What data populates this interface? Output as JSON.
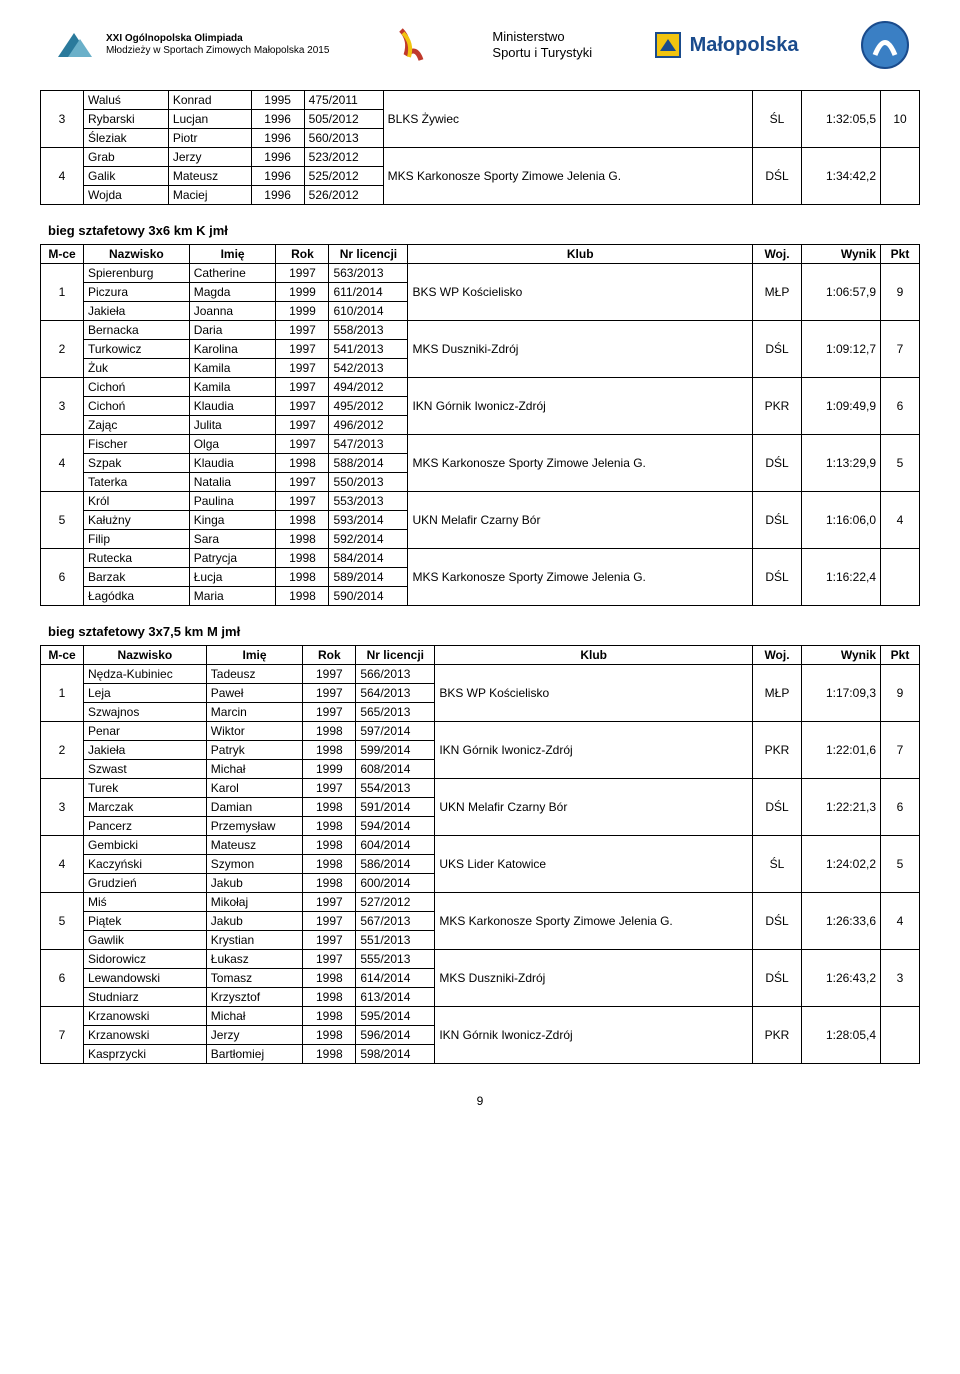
{
  "header": {
    "olympiad_line1": "XXI Ogólnopolska Olimpiada",
    "olympiad_line2": "Młodzieży w Sportach Zimowych Małopolska 2015",
    "ministry_line1": "Ministerstwo",
    "ministry_line2": "Sportu i Turystyki",
    "malopolska": "Małopolska"
  },
  "table1": {
    "rows": [
      {
        "mce": "",
        "naz": "Waluś",
        "imie": "Konrad",
        "rok": "1995",
        "lic": "475/2011",
        "klub": "",
        "woj": "",
        "wynik": "",
        "pkt": ""
      },
      {
        "mce": "3",
        "naz": "Rybarski",
        "imie": "Lucjan",
        "rok": "1996",
        "lic": "505/2012",
        "klub": "BLKS Żywiec",
        "woj": "ŚL",
        "wynik": "1:32:05,5",
        "pkt": "10"
      },
      {
        "mce": "",
        "naz": "Śleziak",
        "imie": "Piotr",
        "rok": "1996",
        "lic": "560/2013",
        "klub": "",
        "woj": "",
        "wynik": "",
        "pkt": ""
      },
      {
        "mce": "",
        "naz": "Grab",
        "imie": "Jerzy",
        "rok": "1996",
        "lic": "523/2012",
        "klub": "",
        "woj": "",
        "wynik": "",
        "pkt": ""
      },
      {
        "mce": "4",
        "naz": "Galik",
        "imie": "Mateusz",
        "rok": "1996",
        "lic": "525/2012",
        "klub": "MKS Karkonosze Sporty Zimowe Jelenia G.",
        "woj": "DŚL",
        "wynik": "1:34:42,2",
        "pkt": ""
      },
      {
        "mce": "",
        "naz": "Wojda",
        "imie": "Maciej",
        "rok": "1996",
        "lic": "526/2012",
        "klub": "",
        "woj": "",
        "wynik": "",
        "pkt": ""
      }
    ]
  },
  "section2_title": "bieg sztafetowy 3x6 km K jmł",
  "headers": {
    "mce": "M-ce",
    "naz": "Nazwisko",
    "imie": "Imię",
    "rok": "Rok",
    "lic": "Nr licencji",
    "klub": "Klub",
    "woj": "Woj.",
    "wynik": "Wynik",
    "pkt": "Pkt"
  },
  "table2": {
    "groups": [
      {
        "mce": "1",
        "klub": "BKS WP Kościelisko",
        "woj": "MŁP",
        "wynik": "1:06:57,9",
        "pkt": "9",
        "rows": [
          {
            "naz": "Spierenburg",
            "imie": "Catherine",
            "rok": "1997",
            "lic": "563/2013"
          },
          {
            "naz": "Piczura",
            "imie": "Magda",
            "rok": "1999",
            "lic": "611/2014"
          },
          {
            "naz": "Jakieła",
            "imie": "Joanna",
            "rok": "1999",
            "lic": "610/2014"
          }
        ]
      },
      {
        "mce": "2",
        "klub": "MKS Duszniki-Zdrój",
        "woj": "DŚL",
        "wynik": "1:09:12,7",
        "pkt": "7",
        "rows": [
          {
            "naz": "Bernacka",
            "imie": "Daria",
            "rok": "1997",
            "lic": "558/2013"
          },
          {
            "naz": "Turkowicz",
            "imie": "Karolina",
            "rok": "1997",
            "lic": "541/2013"
          },
          {
            "naz": "Żuk",
            "imie": "Kamila",
            "rok": "1997",
            "lic": "542/2013"
          }
        ]
      },
      {
        "mce": "3",
        "klub": "IKN Górnik Iwonicz-Zdrój",
        "woj": "PKR",
        "wynik": "1:09:49,9",
        "pkt": "6",
        "rows": [
          {
            "naz": "Cichoń",
            "imie": "Kamila",
            "rok": "1997",
            "lic": "494/2012"
          },
          {
            "naz": "Cichoń",
            "imie": "Klaudia",
            "rok": "1997",
            "lic": "495/2012"
          },
          {
            "naz": "Zając",
            "imie": "Julita",
            "rok": "1997",
            "lic": "496/2012"
          }
        ]
      },
      {
        "mce": "4",
        "klub": "MKS Karkonosze Sporty Zimowe Jelenia G.",
        "woj": "DŚL",
        "wynik": "1:13:29,9",
        "pkt": "5",
        "rows": [
          {
            "naz": "Fischer",
            "imie": "Olga",
            "rok": "1997",
            "lic": "547/2013"
          },
          {
            "naz": "Szpak",
            "imie": "Klaudia",
            "rok": "1998",
            "lic": "588/2014"
          },
          {
            "naz": "Taterka",
            "imie": "Natalia",
            "rok": "1997",
            "lic": "550/2013"
          }
        ]
      },
      {
        "mce": "5",
        "klub": "UKN Melafir Czarny Bór",
        "woj": "DŚL",
        "wynik": "1:16:06,0",
        "pkt": "4",
        "rows": [
          {
            "naz": "Król",
            "imie": "Paulina",
            "rok": "1997",
            "lic": "553/2013"
          },
          {
            "naz": "Kałużny",
            "imie": "Kinga",
            "rok": "1998",
            "lic": "593/2014"
          },
          {
            "naz": "Filip",
            "imie": "Sara",
            "rok": "1998",
            "lic": "592/2014"
          }
        ]
      },
      {
        "mce": "6",
        "klub": "MKS Karkonosze Sporty Zimowe Jelenia G.",
        "woj": "DŚL",
        "wynik": "1:16:22,4",
        "pkt": "",
        "rows": [
          {
            "naz": "Rutecka",
            "imie": "Patrycja",
            "rok": "1998",
            "lic": "584/2014"
          },
          {
            "naz": "Barzak",
            "imie": "Łucja",
            "rok": "1998",
            "lic": "589/2014"
          },
          {
            "naz": "Łagódka",
            "imie": "Maria",
            "rok": "1998",
            "lic": "590/2014"
          }
        ]
      }
    ]
  },
  "section3_title": "bieg sztafetowy 3x7,5 km M jmł",
  "table3": {
    "groups": [
      {
        "mce": "1",
        "klub": "BKS WP Kościelisko",
        "woj": "MŁP",
        "wynik": "1:17:09,3",
        "pkt": "9",
        "rows": [
          {
            "naz": "Nędza-Kubiniec",
            "imie": "Tadeusz",
            "rok": "1997",
            "lic": "566/2013"
          },
          {
            "naz": "Leja",
            "imie": "Paweł",
            "rok": "1997",
            "lic": "564/2013"
          },
          {
            "naz": "Szwajnos",
            "imie": "Marcin",
            "rok": "1997",
            "lic": "565/2013"
          }
        ]
      },
      {
        "mce": "2",
        "klub": "IKN Górnik Iwonicz-Zdrój",
        "woj": "PKR",
        "wynik": "1:22:01,6",
        "pkt": "7",
        "rows": [
          {
            "naz": "Penar",
            "imie": "Wiktor",
            "rok": "1998",
            "lic": "597/2014"
          },
          {
            "naz": "Jakieła",
            "imie": "Patryk",
            "rok": "1998",
            "lic": "599/2014"
          },
          {
            "naz": "Szwast",
            "imie": "Michał",
            "rok": "1999",
            "lic": "608/2014"
          }
        ]
      },
      {
        "mce": "3",
        "klub": "UKN Melafir Czarny Bór",
        "woj": "DŚL",
        "wynik": "1:22:21,3",
        "pkt": "6",
        "rows": [
          {
            "naz": "Turek",
            "imie": "Karol",
            "rok": "1997",
            "lic": "554/2013"
          },
          {
            "naz": "Marczak",
            "imie": "Damian",
            "rok": "1998",
            "lic": "591/2014"
          },
          {
            "naz": "Pancerz",
            "imie": "Przemysław",
            "rok": "1998",
            "lic": "594/2014"
          }
        ]
      },
      {
        "mce": "4",
        "klub": "UKS Lider Katowice",
        "woj": "ŚL",
        "wynik": "1:24:02,2",
        "pkt": "5",
        "rows": [
          {
            "naz": "Gembicki",
            "imie": "Mateusz",
            "rok": "1998",
            "lic": "604/2014"
          },
          {
            "naz": "Kaczyński",
            "imie": "Szymon",
            "rok": "1998",
            "lic": "586/2014"
          },
          {
            "naz": "Grudzień",
            "imie": "Jakub",
            "rok": "1998",
            "lic": "600/2014"
          }
        ]
      },
      {
        "mce": "5",
        "klub": "MKS Karkonosze Sporty Zimowe Jelenia G.",
        "woj": "DŚL",
        "wynik": "1:26:33,6",
        "pkt": "4",
        "rows": [
          {
            "naz": "Miś",
            "imie": "Mikołaj",
            "rok": "1997",
            "lic": "527/2012"
          },
          {
            "naz": "Piątek",
            "imie": "Jakub",
            "rok": "1997",
            "lic": "567/2013"
          },
          {
            "naz": "Gawlik",
            "imie": "Krystian",
            "rok": "1997",
            "lic": "551/2013"
          }
        ]
      },
      {
        "mce": "6",
        "klub": "MKS Duszniki-Zdrój",
        "woj": "DŚL",
        "wynik": "1:26:43,2",
        "pkt": "3",
        "rows": [
          {
            "naz": "Sidorowicz",
            "imie": "Łukasz",
            "rok": "1997",
            "lic": "555/2013"
          },
          {
            "naz": "Lewandowski",
            "imie": "Tomasz",
            "rok": "1998",
            "lic": "614/2014"
          },
          {
            "naz": "Studniarz",
            "imie": "Krzysztof",
            "rok": "1998",
            "lic": "613/2014"
          }
        ]
      },
      {
        "mce": "7",
        "klub": "IKN Górnik Iwonicz-Zdrój",
        "woj": "PKR",
        "wynik": "1:28:05,4",
        "pkt": "",
        "rows": [
          {
            "naz": "Krzanowski",
            "imie": "Michał",
            "rok": "1998",
            "lic": "595/2014"
          },
          {
            "naz": "Krzanowski",
            "imie": "Jerzy",
            "rok": "1998",
            "lic": "596/2014"
          },
          {
            "naz": "Kasprzycki",
            "imie": "Bartłomiej",
            "rok": "1998",
            "lic": "598/2014"
          }
        ]
      }
    ]
  },
  "page_number": "9"
}
